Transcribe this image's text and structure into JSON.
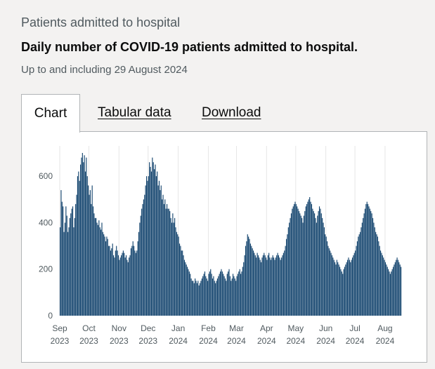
{
  "card": {
    "title": "Patients admitted to hospital",
    "heading": "Daily number of COVID-19 patients admitted to hospital.",
    "subtitle": "Up to and including 29 August 2024"
  },
  "tabs": [
    {
      "label": "Chart",
      "active": true
    },
    {
      "label": "Tabular data",
      "active": false
    },
    {
      "label": "Download",
      "active": false
    }
  ],
  "colors": {
    "bar": "#12436d",
    "background": "#f3f2f1",
    "grid": "#e6e6e6"
  },
  "chart_data": {
    "type": "bar",
    "title": "",
    "xlabel": "",
    "ylabel": "",
    "ylim": [
      0,
      700
    ],
    "yticks": [
      0,
      200,
      400,
      600
    ],
    "grid": true,
    "x_start": "2023-09-01",
    "x_end": "2024-08-29",
    "x_ticks": [
      {
        "date": "2023-09-01",
        "month": "Sep",
        "year": "2023"
      },
      {
        "date": "2023-10-01",
        "month": "Oct",
        "year": "2023"
      },
      {
        "date": "2023-11-01",
        "month": "Nov",
        "year": "2023"
      },
      {
        "date": "2023-12-01",
        "month": "Dec",
        "year": "2023"
      },
      {
        "date": "2024-01-01",
        "month": "Jan",
        "year": "2024"
      },
      {
        "date": "2024-02-01",
        "month": "Feb",
        "year": "2024"
      },
      {
        "date": "2024-03-01",
        "month": "Mar",
        "year": "2024"
      },
      {
        "date": "2024-04-01",
        "month": "Apr",
        "year": "2024"
      },
      {
        "date": "2024-05-01",
        "month": "May",
        "year": "2024"
      },
      {
        "date": "2024-06-01",
        "month": "Jun",
        "year": "2024"
      },
      {
        "date": "2024-07-01",
        "month": "Jul",
        "year": "2024"
      },
      {
        "date": "2024-08-01",
        "month": "Aug",
        "year": "2024"
      }
    ],
    "series": [
      {
        "values": [
          380,
          540,
          490,
          470,
          360,
          400,
          470,
          430,
          360,
          380,
          420,
          440,
          460,
          470,
          380,
          420,
          480,
          520,
          600,
          620,
          580,
          650,
          680,
          700,
          660,
          690,
          620,
          680,
          600,
          560,
          520,
          540,
          480,
          560,
          470,
          440,
          420,
          420,
          400,
          390,
          410,
          380,
          370,
          400,
          360,
          350,
          340,
          320,
          340,
          330,
          300,
          300,
          280,
          290,
          310,
          260,
          250,
          280,
          300,
          280,
          260,
          240,
          250,
          260,
          270,
          280,
          270,
          250,
          260,
          240,
          230,
          250,
          260,
          290,
          300,
          320,
          300,
          280,
          270,
          280,
          320,
          360,
          400,
          430,
          460,
          480,
          500,
          520,
          560,
          600,
          580,
          600,
          660,
          640,
          620,
          680,
          660,
          630,
          650,
          600,
          620,
          560,
          580,
          540,
          560,
          500,
          520,
          480,
          500,
          460,
          480,
          460,
          460,
          450,
          420,
          400,
          440,
          400,
          420,
          380,
          360,
          350,
          340,
          310,
          300,
          280,
          280,
          260,
          240,
          230,
          220,
          210,
          200,
          190,
          180,
          160,
          150,
          150,
          140,
          160,
          150,
          140,
          150,
          130,
          140,
          150,
          160,
          170,
          180,
          190,
          170,
          160,
          150,
          180,
          190,
          200,
          180,
          160,
          170,
          150,
          140,
          150,
          160,
          170,
          180,
          190,
          200,
          190,
          180,
          170,
          160,
          150,
          180,
          190,
          200,
          170,
          150,
          160,
          180,
          170,
          160,
          150,
          170,
          180,
          190,
          200,
          180,
          190,
          210,
          230,
          260,
          300,
          320,
          350,
          340,
          330,
          310,
          300,
          290,
          280,
          270,
          260,
          250,
          270,
          260,
          250,
          240,
          230,
          250,
          260,
          270,
          260,
          250,
          240,
          260,
          270,
          250,
          240,
          250,
          260,
          250,
          240,
          250,
          260,
          270,
          260,
          250,
          240,
          250,
          260,
          270,
          280,
          300,
          330,
          350,
          380,
          400,
          420,
          440,
          460,
          470,
          480,
          490,
          480,
          470,
          460,
          450,
          440,
          430,
          420,
          400,
          430,
          450,
          470,
          480,
          490,
          500,
          510,
          490,
          480,
          460,
          450,
          440,
          420,
          400,
          430,
          450,
          470,
          460,
          440,
          420,
          400,
          380,
          350,
          340,
          320,
          300,
          290,
          280,
          270,
          260,
          250,
          240,
          230,
          220,
          240,
          230,
          220,
          210,
          200,
          190,
          180,
          200,
          210,
          220,
          230,
          240,
          250,
          240,
          230,
          240,
          250,
          260,
          270,
          280,
          300,
          320,
          340,
          350,
          360,
          380,
          400,
          420,
          440,
          460,
          480,
          490,
          480,
          470,
          460,
          450,
          440,
          420,
          400,
          380,
          360,
          350,
          340,
          320,
          300,
          280,
          270,
          260,
          250,
          240,
          230,
          220,
          210,
          200,
          190,
          180,
          190,
          200,
          210,
          220,
          230,
          240,
          250,
          240,
          230,
          220,
          210
        ]
      }
    ]
  }
}
